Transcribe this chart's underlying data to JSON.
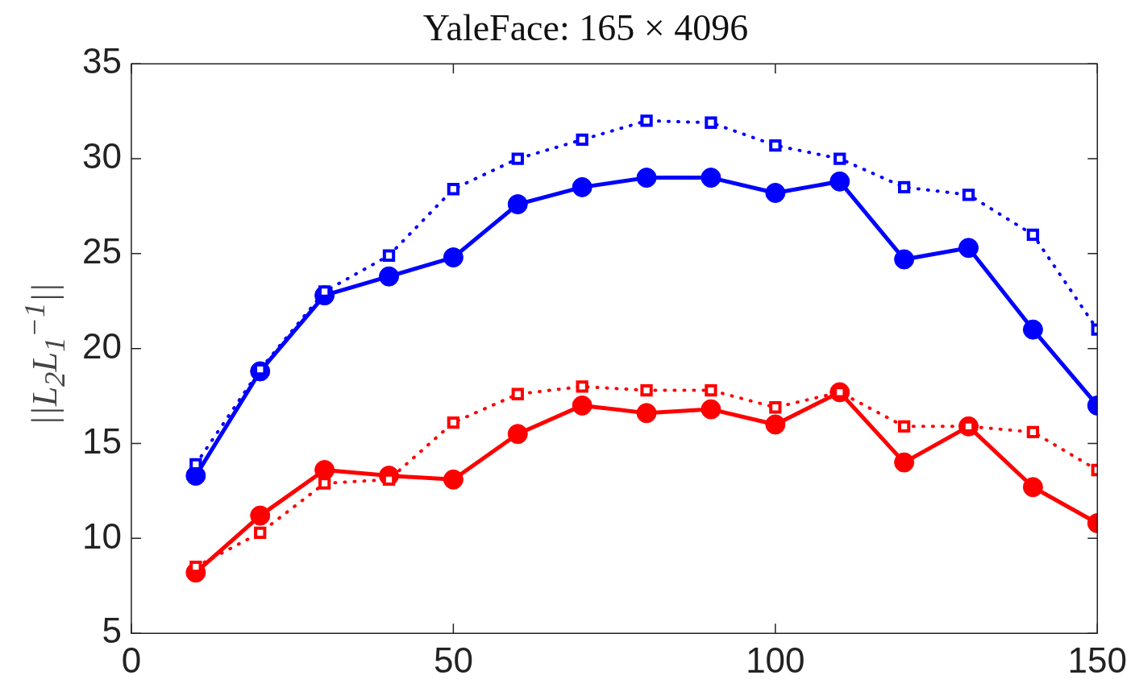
{
  "chart_data": {
    "type": "line",
    "title": "YaleFace: 165 × 4096",
    "ylabel": "||L$_{2}$L$_{1}$$^{−1}$||",
    "x": [
      10,
      20,
      30,
      40,
      50,
      60,
      70,
      80,
      90,
      100,
      110,
      120,
      130,
      140,
      150
    ],
    "xlim": [
      0,
      150
    ],
    "xticks": [
      0,
      50,
      100,
      150
    ],
    "ylim": [
      5,
      35
    ],
    "yticks": [
      5,
      10,
      15,
      20,
      25,
      30,
      35
    ],
    "grid": false,
    "legend": false,
    "series": [
      {
        "color": "#0000ff",
        "marker": "square",
        "line_style": "dotted",
        "values": [
          13.9,
          18.9,
          23.0,
          24.9,
          28.4,
          30.0,
          31.0,
          32.0,
          31.9,
          30.7,
          30.0,
          28.5,
          28.1,
          26.0,
          21.0
        ]
      },
      {
        "color": "#0000ff",
        "marker": "circle",
        "line_style": "solid",
        "values": [
          13.3,
          18.8,
          22.8,
          23.8,
          24.8,
          27.6,
          28.5,
          29.0,
          29.0,
          28.2,
          28.8,
          24.7,
          25.3,
          21.0,
          17.0
        ]
      },
      {
        "color": "#ff0000",
        "marker": "square",
        "line_style": "dotted",
        "values": [
          8.5,
          10.3,
          12.9,
          13.1,
          16.1,
          17.6,
          18.0,
          17.8,
          17.8,
          16.9,
          17.7,
          15.9,
          15.9,
          15.6,
          13.6
        ]
      },
      {
        "color": "#ff0000",
        "marker": "circle",
        "line_style": "solid",
        "values": [
          8.2,
          11.2,
          13.6,
          13.3,
          13.1,
          15.5,
          17.0,
          16.6,
          16.8,
          16.0,
          17.7,
          14.0,
          15.9,
          12.7,
          10.8
        ]
      }
    ]
  }
}
